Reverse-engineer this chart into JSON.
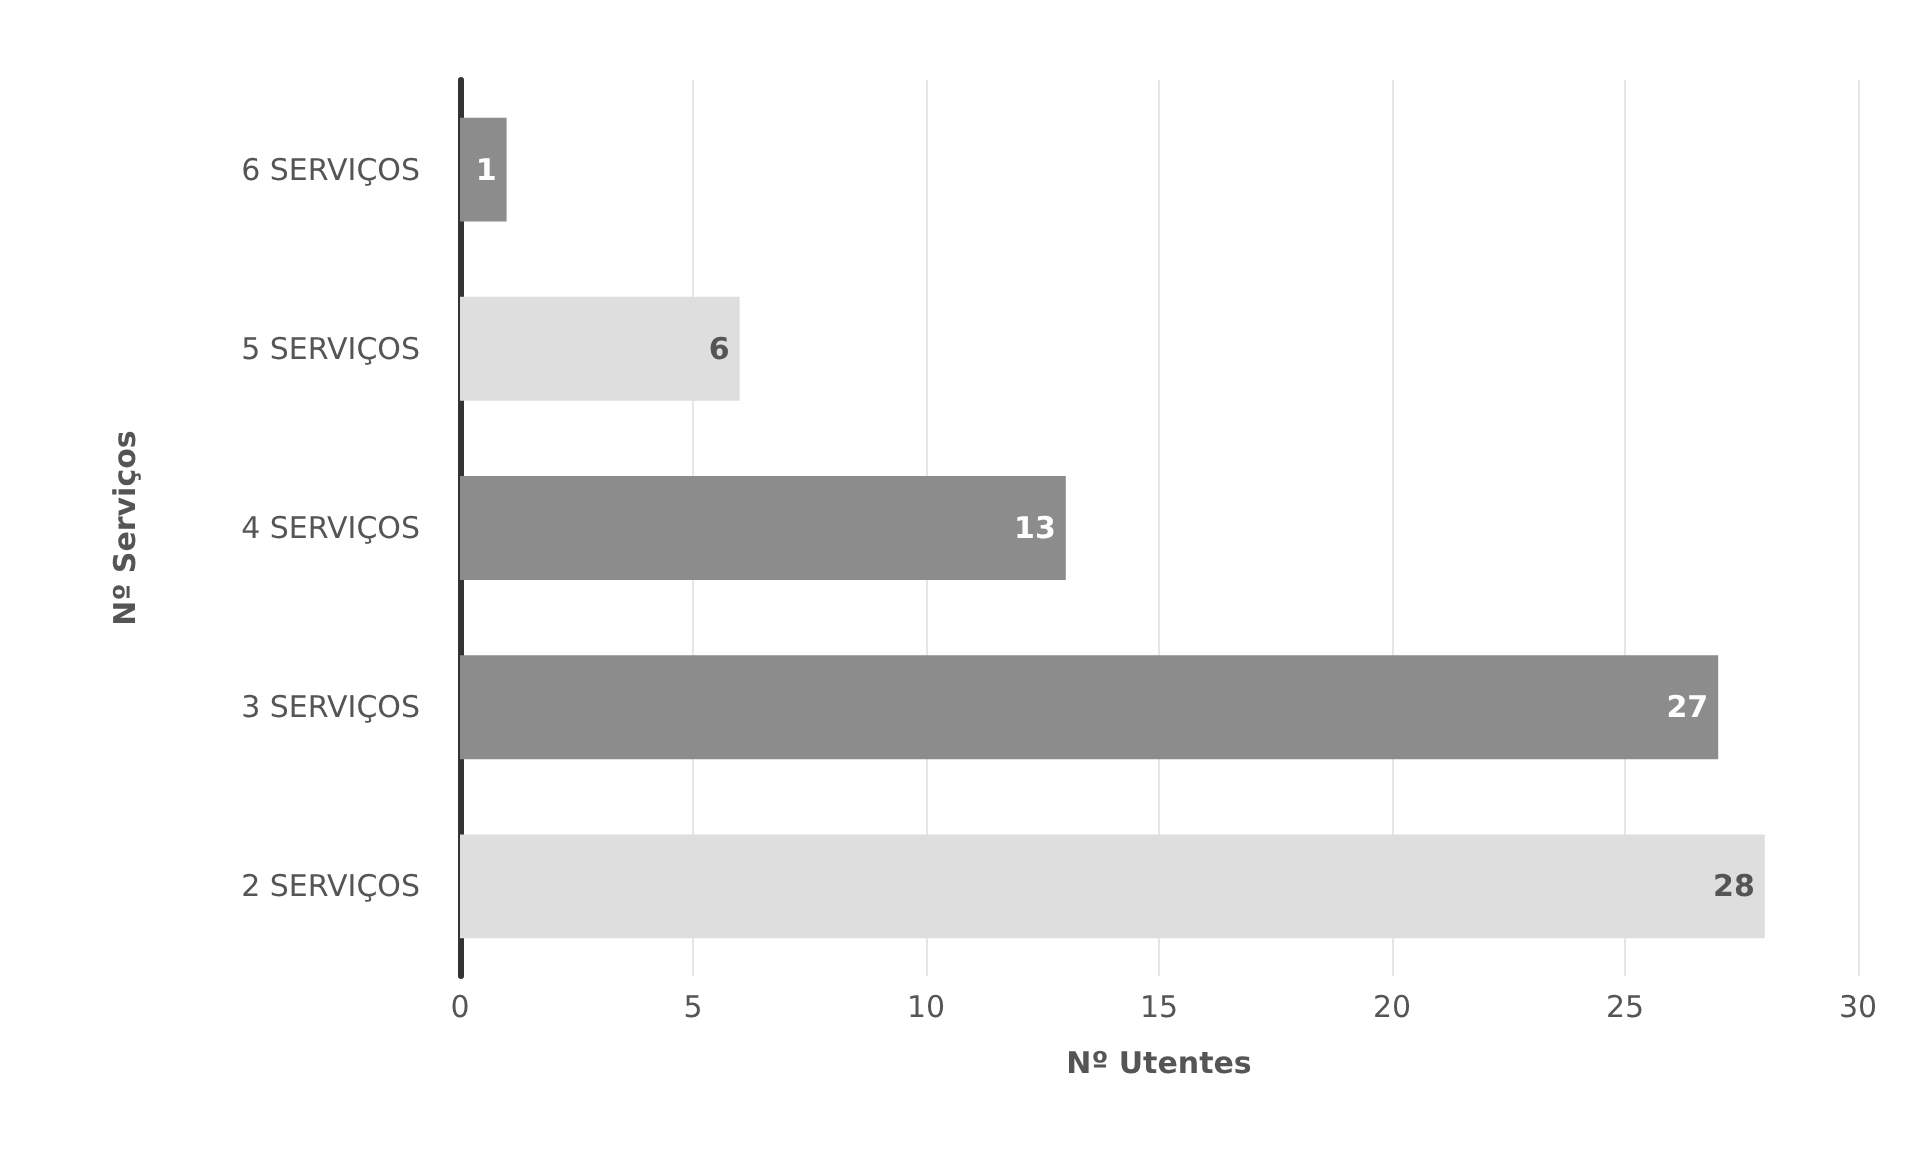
{
  "chart_data": {
    "type": "bar",
    "orientation": "horizontal",
    "xlabel": "Nº Utentes",
    "ylabel": "Nº Serviços",
    "categories": [
      "6 SERVIÇOS",
      "5 SERVIÇOS",
      "4 SERVIÇOS",
      "3 SERVIÇOS",
      "2 SERVIÇOS"
    ],
    "values": [
      1,
      6,
      13,
      27,
      28
    ],
    "colors": [
      "#8c8c8c",
      "#dedede",
      "#8c8c8c",
      "#8c8c8c",
      "#dedede"
    ],
    "xlim": [
      0,
      30
    ],
    "xticks": [
      0,
      5,
      10,
      15,
      20,
      25,
      30
    ],
    "grid": "x",
    "data_labels": true
  }
}
